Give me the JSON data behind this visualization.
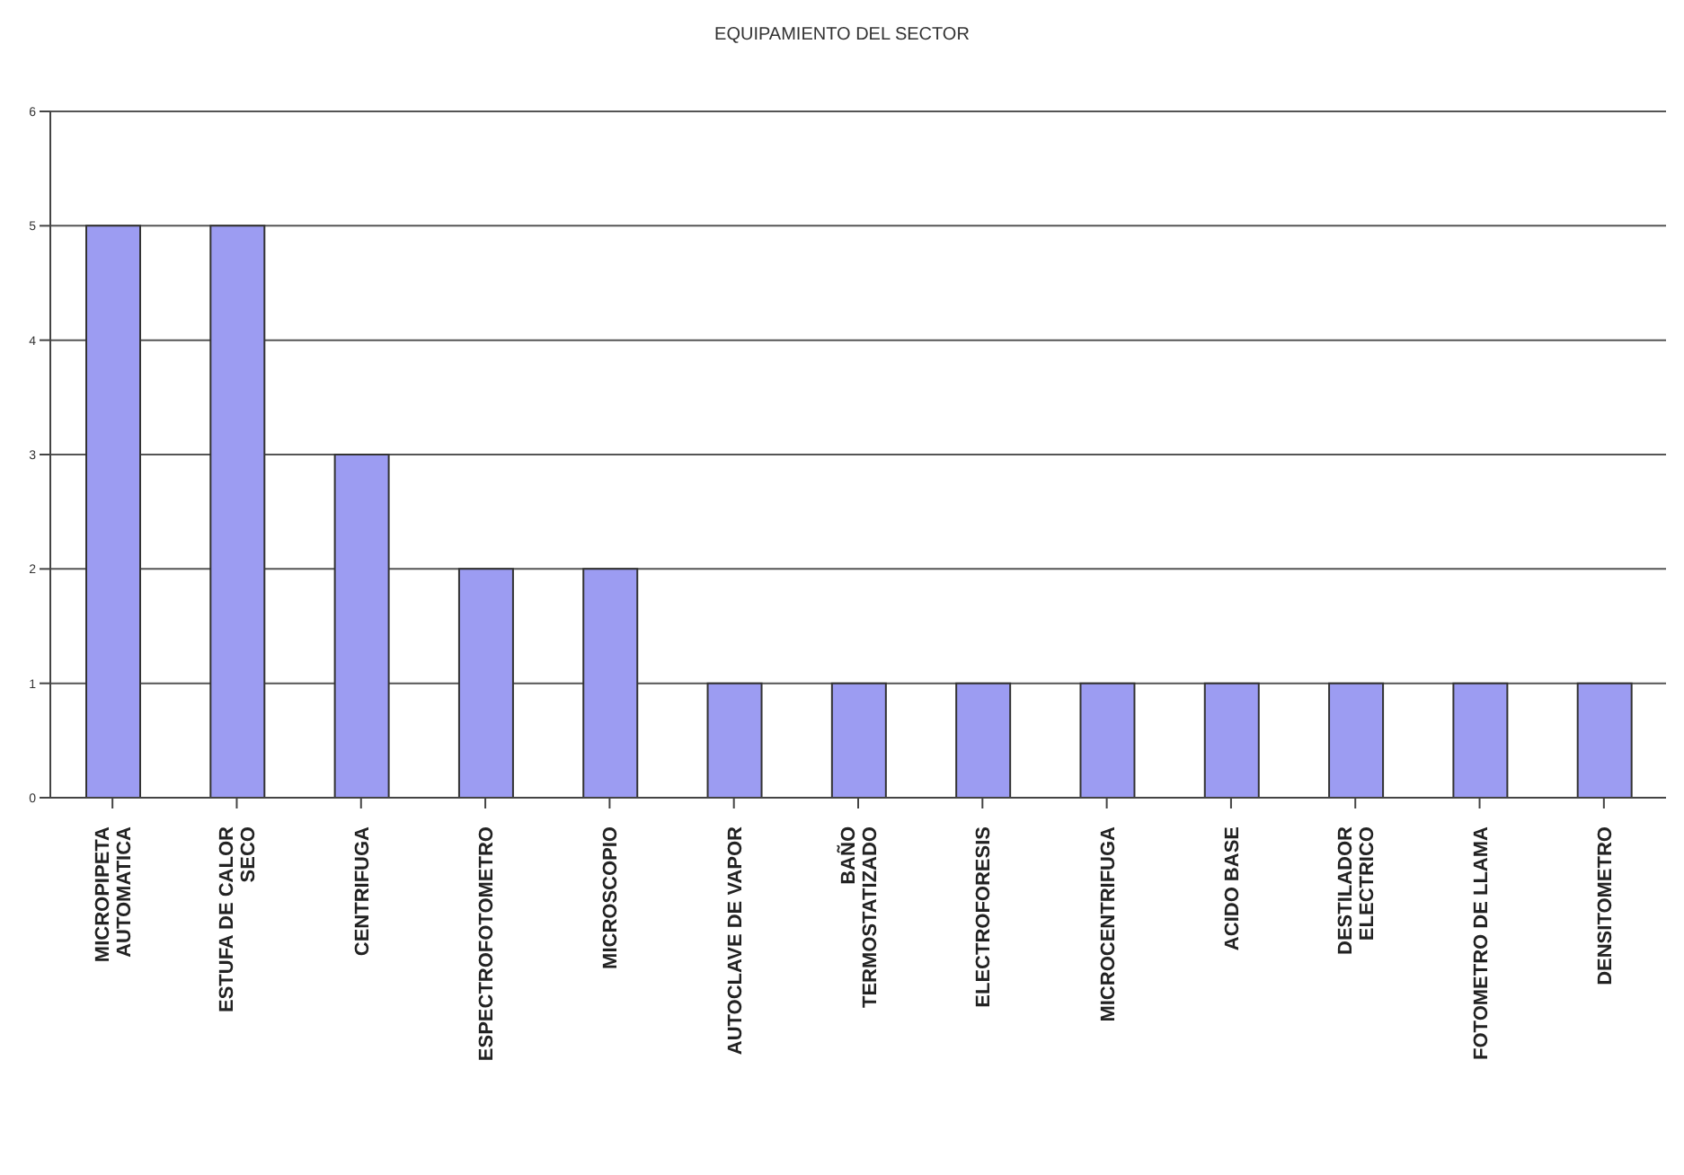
{
  "chart_data": {
    "type": "bar",
    "title": "EQUIPAMIENTO DEL SECTOR",
    "categories": [
      "MICROPIPETA\nAUTOMATICA",
      "ESTUFA DE CALOR\nSECO",
      "CENTRIFUGA",
      "ESPECTROFOTOMETRO",
      "MICROSCOPIO",
      "AUTOCLAVE DE VAPOR",
      "BAÑO\nTERMOSTATIZADO",
      "ELECTROFORESIS",
      "MICROCENTRIFUGA",
      "ACIDO BASE",
      "DESTILADOR\nELECTRICO",
      "FOTOMETRO DE LLAMA",
      "DENSITOMETRO"
    ],
    "values": [
      5,
      5,
      3,
      2,
      2,
      1,
      1,
      1,
      1,
      1,
      1,
      1,
      1
    ],
    "color": "#9c9cf2",
    "ylim": [
      0,
      6
    ],
    "yticks": [
      0,
      1,
      2,
      3,
      4,
      5,
      6
    ],
    "grid": "y",
    "legend": false
  }
}
